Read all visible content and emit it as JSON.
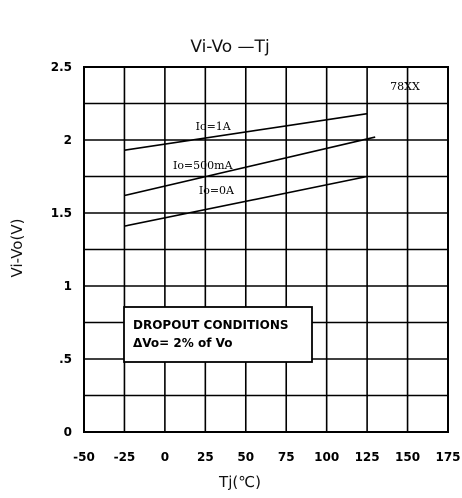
{
  "chart_data": {
    "type": "line",
    "title": "Vi-Vo —Tj",
    "xlabel": "Tj(℃)",
    "ylabel": "Vi-Vo(V)",
    "xlim": [
      -50,
      175
    ],
    "ylim": [
      0,
      2.5
    ],
    "x_ticks": [
      "-50",
      "-25",
      "0",
      "25",
      "50",
      "75",
      "100",
      "125",
      "150",
      "175"
    ],
    "x_tick_values": [
      -50,
      -25,
      0,
      25,
      50,
      75,
      100,
      125,
      150,
      175
    ],
    "y_ticks": [
      "0",
      ".5",
      "1",
      "1.5",
      "2",
      "2.5"
    ],
    "y_tick_values": [
      0,
      0.5,
      1,
      1.5,
      2,
      2.5
    ],
    "grid": true,
    "series": [
      {
        "name": "Io=1A",
        "x": [
          -25,
          125
        ],
        "y": [
          1.93,
          2.18
        ]
      },
      {
        "name": "Io=500mA",
        "x": [
          -25,
          130
        ],
        "y": [
          1.62,
          2.02
        ]
      },
      {
        "name": "Io=0A",
        "x": [
          -25,
          125
        ],
        "y": [
          1.41,
          1.75
        ]
      }
    ],
    "annotations": {
      "device": "78XX",
      "conditions_line1": "DROPOUT  CONDITIONS",
      "conditions_line2": "ΔVo= 2% of Vo"
    }
  }
}
